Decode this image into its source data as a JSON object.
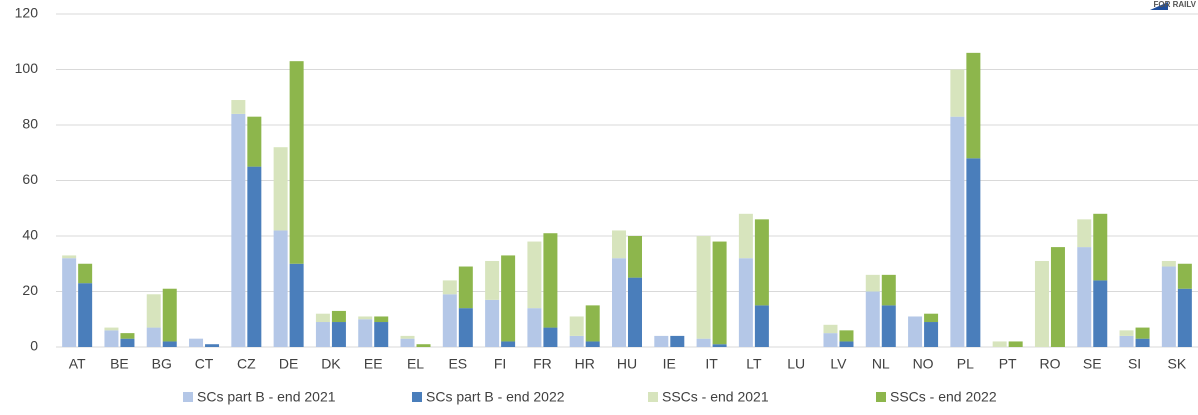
{
  "chart_data": {
    "type": "stacked-grouped-bar",
    "logo_text": "FOR RAILV",
    "categories": [
      "AT",
      "BE",
      "BG",
      "CT",
      "CZ",
      "DE",
      "DK",
      "EE",
      "EL",
      "ES",
      "FI",
      "FR",
      "HR",
      "HU",
      "IE",
      "IT",
      "LT",
      "LU",
      "LV",
      "NL",
      "NO",
      "PL",
      "PT",
      "RO",
      "SE",
      "SI",
      "SK"
    ],
    "series": [
      {
        "name": "SCs part B - end 2021",
        "color": "#b4c7e7",
        "stack": 0,
        "values": [
          32,
          6,
          7,
          3,
          84,
          42,
          9,
          10,
          3,
          19,
          17,
          14,
          4,
          32,
          4,
          3,
          32,
          0,
          5,
          20,
          11,
          83,
          0,
          0,
          36,
          4,
          29
        ]
      },
      {
        "name": "SCs part B - end 2022",
        "color": "#4a7ebb",
        "stack": 1,
        "values": [
          23,
          3,
          2,
          1,
          65,
          30,
          9,
          9,
          0,
          14,
          2,
          7,
          2,
          25,
          4,
          1,
          15,
          0,
          2,
          15,
          9,
          68,
          0,
          0,
          24,
          3,
          21
        ]
      },
      {
        "name": "SSCs - end 2021",
        "color": "#d7e4bd",
        "stack": 0,
        "values": [
          1,
          1,
          12,
          0,
          5,
          30,
          3,
          1,
          1,
          5,
          14,
          24,
          7,
          10,
          0,
          37,
          16,
          0,
          3,
          6,
          0,
          17,
          2,
          31,
          10,
          2,
          2
        ]
      },
      {
        "name": "SSCs - end 2022",
        "color": "#8db64c",
        "stack": 1,
        "values": [
          7,
          2,
          19,
          0,
          18,
          73,
          4,
          2,
          1,
          15,
          31,
          34,
          13,
          15,
          0,
          37,
          31,
          0,
          4,
          11,
          3,
          38,
          2,
          36,
          24,
          4,
          9
        ]
      }
    ],
    "ylim": [
      0,
      120
    ],
    "yticks": [
      0,
      20,
      40,
      60,
      80,
      100,
      120
    ],
    "grid": true
  }
}
